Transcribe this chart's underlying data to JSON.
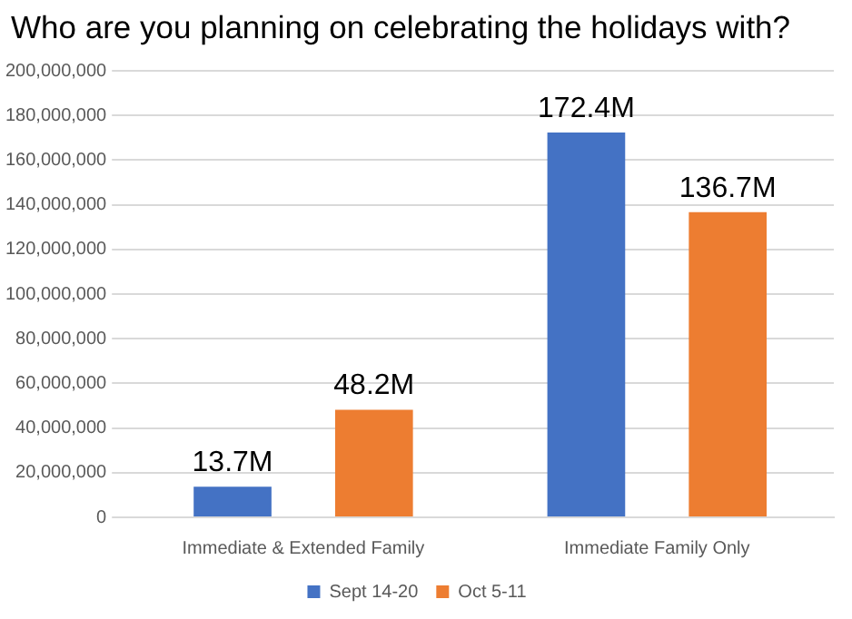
{
  "chart_data": {
    "type": "bar",
    "title": "Who are you planning on celebrating the holidays with?",
    "categories": [
      "Immediate & Extended Family",
      "Immediate Family Only"
    ],
    "series": [
      {
        "name": "Sept 14-20",
        "color": "#4472c4",
        "values": [
          13700000,
          172400000
        ],
        "value_labels": [
          "13.7M",
          "172.4M"
        ]
      },
      {
        "name": "Oct 5-11",
        "color": "#ed7d31",
        "values": [
          48200000,
          136700000
        ],
        "value_labels": [
          "48.2M",
          "136.7M"
        ]
      }
    ],
    "ylim": [
      0,
      200000000
    ],
    "yticks": [
      0,
      {
        "value": 20000000,
        "label": "20,000,000"
      },
      {
        "value": 40000000,
        "label": "40,000,000"
      },
      {
        "value": 60000000,
        "label": "60,000,000"
      },
      {
        "value": 80000000,
        "label": "80,000,000"
      },
      {
        "value": 100000000,
        "label": "100,000,000"
      },
      {
        "value": 120000000,
        "label": "120,000,000"
      },
      {
        "value": 140000000,
        "label": "140,000,000"
      },
      {
        "value": 160000000,
        "label": "160,000,000"
      },
      {
        "value": 180000000,
        "label": "180,000,000"
      },
      {
        "value": 200000000,
        "label": "200,000,000"
      }
    ],
    "grid": "y",
    "legend": "bottom"
  }
}
